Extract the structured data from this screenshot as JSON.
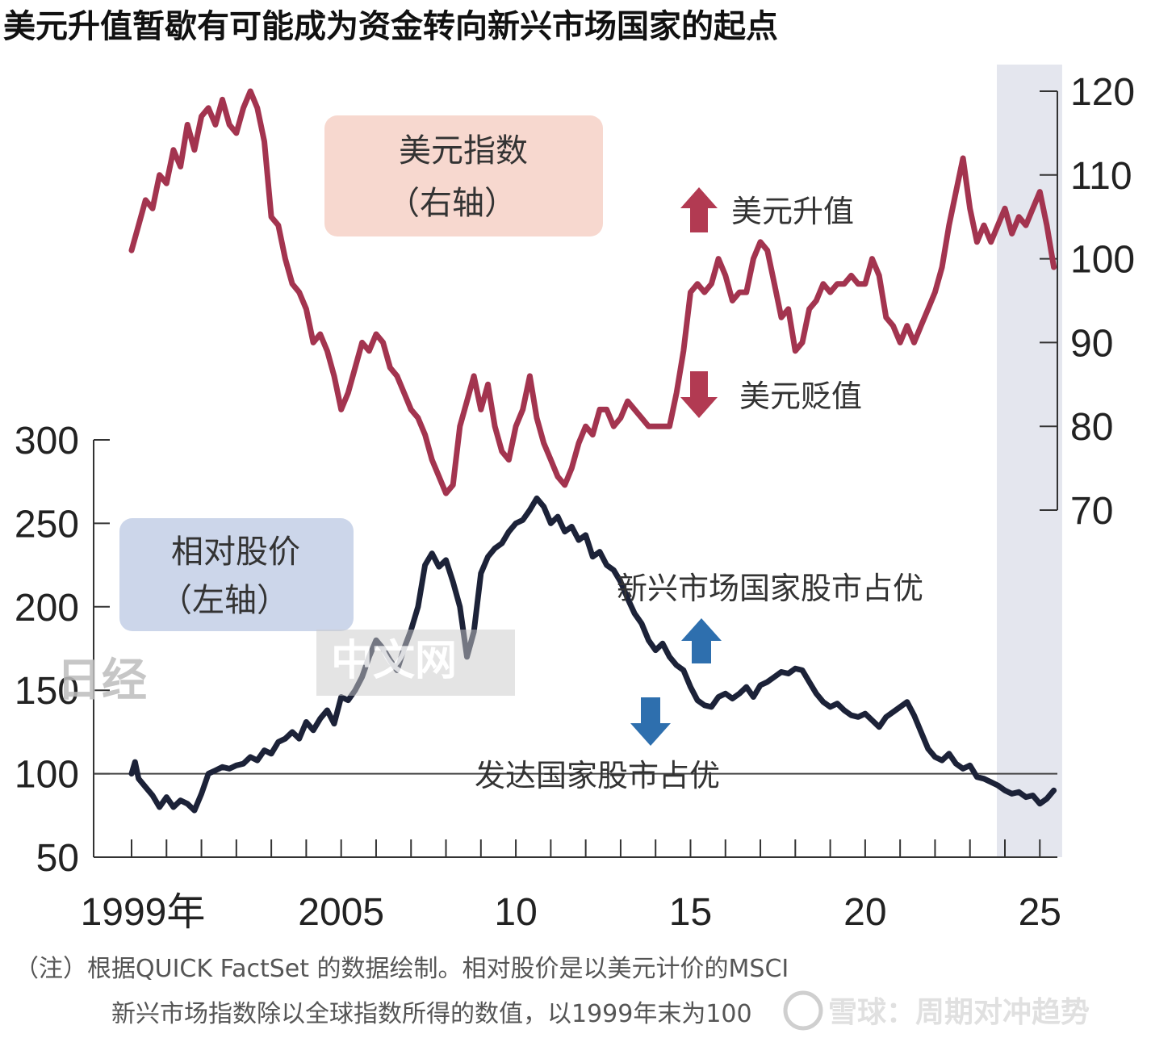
{
  "title": "美元升值暂歇有可能成为资金转向新兴市场国家的起点",
  "chart_data": {
    "type": "line",
    "x_ticks": [
      {
        "year": 1999,
        "label": "1999年"
      },
      {
        "year": 2005,
        "label": "2005"
      },
      {
        "year": 2010,
        "label": "10"
      },
      {
        "year": 2015,
        "label": "15"
      },
      {
        "year": 2020,
        "label": "20"
      },
      {
        "year": 2025,
        "label": "25"
      }
    ],
    "xlim": [
      1999,
      2025.4
    ],
    "left_axis": {
      "ylim": [
        50,
        300
      ],
      "ticks": [
        "50",
        "100",
        "150",
        "200",
        "250",
        "300"
      ],
      "reference_line": 100
    },
    "right_axis": {
      "ylim": [
        70,
        120
      ],
      "ticks": [
        "70",
        "80",
        "90",
        "100",
        "110",
        "120"
      ]
    },
    "series": [
      {
        "name": "美元指数",
        "name_sub": "（右轴）",
        "axis": "right",
        "color": "#a3344f",
        "points": [
          [
            1999.0,
            101
          ],
          [
            1999.2,
            104
          ],
          [
            1999.4,
            107
          ],
          [
            1999.6,
            106
          ],
          [
            1999.8,
            110
          ],
          [
            2000.0,
            109
          ],
          [
            2000.2,
            113
          ],
          [
            2000.4,
            111
          ],
          [
            2000.6,
            116
          ],
          [
            2000.8,
            113
          ],
          [
            2001.0,
            117
          ],
          [
            2001.2,
            118
          ],
          [
            2001.4,
            116
          ],
          [
            2001.6,
            119
          ],
          [
            2001.8,
            116
          ],
          [
            2002.0,
            115
          ],
          [
            2002.2,
            118
          ],
          [
            2002.4,
            120
          ],
          [
            2002.6,
            118
          ],
          [
            2002.8,
            114
          ],
          [
            2003.0,
            105
          ],
          [
            2003.2,
            104
          ],
          [
            2003.4,
            100
          ],
          [
            2003.6,
            97
          ],
          [
            2003.8,
            96
          ],
          [
            2004.0,
            94
          ],
          [
            2004.2,
            90
          ],
          [
            2004.4,
            91
          ],
          [
            2004.6,
            89
          ],
          [
            2004.8,
            86
          ],
          [
            2005.0,
            82
          ],
          [
            2005.2,
            84
          ],
          [
            2005.4,
            87
          ],
          [
            2005.6,
            90
          ],
          [
            2005.8,
            89
          ],
          [
            2006.0,
            91
          ],
          [
            2006.2,
            90
          ],
          [
            2006.4,
            87
          ],
          [
            2006.6,
            86
          ],
          [
            2006.8,
            84
          ],
          [
            2007.0,
            82
          ],
          [
            2007.2,
            81
          ],
          [
            2007.4,
            79
          ],
          [
            2007.6,
            76
          ],
          [
            2007.8,
            74
          ],
          [
            2008.0,
            72
          ],
          [
            2008.2,
            73
          ],
          [
            2008.4,
            80
          ],
          [
            2008.6,
            83
          ],
          [
            2008.8,
            86
          ],
          [
            2009.0,
            82
          ],
          [
            2009.2,
            85
          ],
          [
            2009.4,
            80
          ],
          [
            2009.6,
            77
          ],
          [
            2009.8,
            76
          ],
          [
            2010.0,
            80
          ],
          [
            2010.2,
            82
          ],
          [
            2010.4,
            86
          ],
          [
            2010.6,
            81
          ],
          [
            2010.8,
            78
          ],
          [
            2011.0,
            76
          ],
          [
            2011.2,
            74
          ],
          [
            2011.4,
            73
          ],
          [
            2011.6,
            75
          ],
          [
            2011.8,
            78
          ],
          [
            2012.0,
            80
          ],
          [
            2012.2,
            79
          ],
          [
            2012.4,
            82
          ],
          [
            2012.6,
            82
          ],
          [
            2012.8,
            80
          ],
          [
            2013.0,
            81
          ],
          [
            2013.2,
            83
          ],
          [
            2013.4,
            82
          ],
          [
            2013.6,
            81
          ],
          [
            2013.8,
            80
          ],
          [
            2014.0,
            80
          ],
          [
            2014.2,
            80
          ],
          [
            2014.4,
            80
          ],
          [
            2014.6,
            84
          ],
          [
            2014.8,
            89
          ],
          [
            2015.0,
            96
          ],
          [
            2015.2,
            97
          ],
          [
            2015.4,
            96
          ],
          [
            2015.6,
            97
          ],
          [
            2015.8,
            100
          ],
          [
            2016.0,
            98
          ],
          [
            2016.2,
            95
          ],
          [
            2016.4,
            96
          ],
          [
            2016.6,
            96
          ],
          [
            2016.8,
            100
          ],
          [
            2017.0,
            102
          ],
          [
            2017.2,
            101
          ],
          [
            2017.4,
            97
          ],
          [
            2017.6,
            93
          ],
          [
            2017.8,
            94
          ],
          [
            2018.0,
            89
          ],
          [
            2018.2,
            90
          ],
          [
            2018.4,
            94
          ],
          [
            2018.6,
            95
          ],
          [
            2018.8,
            97
          ],
          [
            2019.0,
            96
          ],
          [
            2019.2,
            97
          ],
          [
            2019.4,
            97
          ],
          [
            2019.6,
            98
          ],
          [
            2019.8,
            97
          ],
          [
            2020.0,
            97
          ],
          [
            2020.2,
            100
          ],
          [
            2020.4,
            98
          ],
          [
            2020.6,
            93
          ],
          [
            2020.8,
            92
          ],
          [
            2021.0,
            90
          ],
          [
            2021.2,
            92
          ],
          [
            2021.4,
            90
          ],
          [
            2021.6,
            92
          ],
          [
            2021.8,
            94
          ],
          [
            2022.0,
            96
          ],
          [
            2022.2,
            99
          ],
          [
            2022.4,
            104
          ],
          [
            2022.6,
            108
          ],
          [
            2022.8,
            112
          ],
          [
            2023.0,
            106
          ],
          [
            2023.2,
            102
          ],
          [
            2023.4,
            104
          ],
          [
            2023.6,
            102
          ],
          [
            2023.8,
            104
          ],
          [
            2024.0,
            106
          ],
          [
            2024.2,
            103
          ],
          [
            2024.4,
            105
          ],
          [
            2024.6,
            104
          ],
          [
            2024.8,
            106
          ],
          [
            2025.0,
            108
          ],
          [
            2025.2,
            104
          ],
          [
            2025.4,
            99
          ]
        ]
      },
      {
        "name": "相对股价",
        "name_sub": "（左轴）",
        "axis": "left",
        "color": "#1c2238",
        "points": [
          [
            1999.0,
            100
          ],
          [
            1999.1,
            107
          ],
          [
            1999.2,
            97
          ],
          [
            1999.4,
            92
          ],
          [
            1999.6,
            87
          ],
          [
            1999.8,
            80
          ],
          [
            2000.0,
            86
          ],
          [
            2000.2,
            80
          ],
          [
            2000.4,
            84
          ],
          [
            2000.6,
            82
          ],
          [
            2000.8,
            78
          ],
          [
            2001.0,
            88
          ],
          [
            2001.2,
            100
          ],
          [
            2001.4,
            102
          ],
          [
            2001.6,
            104
          ],
          [
            2001.8,
            103
          ],
          [
            2002.0,
            105
          ],
          [
            2002.2,
            106
          ],
          [
            2002.4,
            110
          ],
          [
            2002.6,
            108
          ],
          [
            2002.8,
            114
          ],
          [
            2003.0,
            112
          ],
          [
            2003.2,
            119
          ],
          [
            2003.4,
            121
          ],
          [
            2003.6,
            125
          ],
          [
            2003.8,
            121
          ],
          [
            2004.0,
            131
          ],
          [
            2004.2,
            126
          ],
          [
            2004.4,
            133
          ],
          [
            2004.6,
            138
          ],
          [
            2004.8,
            130
          ],
          [
            2005.0,
            146
          ],
          [
            2005.2,
            144
          ],
          [
            2005.4,
            150
          ],
          [
            2005.6,
            158
          ],
          [
            2005.8,
            170
          ],
          [
            2006.0,
            180
          ],
          [
            2006.2,
            175
          ],
          [
            2006.4,
            168
          ],
          [
            2006.6,
            162
          ],
          [
            2006.8,
            175
          ],
          [
            2007.0,
            186
          ],
          [
            2007.2,
            200
          ],
          [
            2007.4,
            225
          ],
          [
            2007.6,
            232
          ],
          [
            2007.8,
            224
          ],
          [
            2008.0,
            228
          ],
          [
            2008.2,
            215
          ],
          [
            2008.4,
            200
          ],
          [
            2008.6,
            170
          ],
          [
            2008.8,
            185
          ],
          [
            2009.0,
            220
          ],
          [
            2009.2,
            230
          ],
          [
            2009.4,
            235
          ],
          [
            2009.6,
            238
          ],
          [
            2009.8,
            245
          ],
          [
            2010.0,
            250
          ],
          [
            2010.2,
            252
          ],
          [
            2010.4,
            258
          ],
          [
            2010.6,
            265
          ],
          [
            2010.8,
            260
          ],
          [
            2011.0,
            250
          ],
          [
            2011.2,
            254
          ],
          [
            2011.4,
            245
          ],
          [
            2011.6,
            248
          ],
          [
            2011.8,
            240
          ],
          [
            2012.0,
            243
          ],
          [
            2012.2,
            230
          ],
          [
            2012.4,
            233
          ],
          [
            2012.6,
            225
          ],
          [
            2012.8,
            222
          ],
          [
            2013.0,
            215
          ],
          [
            2013.2,
            205
          ],
          [
            2013.4,
            196
          ],
          [
            2013.6,
            190
          ],
          [
            2013.8,
            180
          ],
          [
            2014.0,
            174
          ],
          [
            2014.2,
            178
          ],
          [
            2014.4,
            170
          ],
          [
            2014.6,
            165
          ],
          [
            2014.8,
            162
          ],
          [
            2015.0,
            152
          ],
          [
            2015.2,
            144
          ],
          [
            2015.4,
            141
          ],
          [
            2015.6,
            140
          ],
          [
            2015.8,
            146
          ],
          [
            2016.0,
            148
          ],
          [
            2016.2,
            145
          ],
          [
            2016.4,
            148
          ],
          [
            2016.6,
            152
          ],
          [
            2016.8,
            146
          ],
          [
            2017.0,
            153
          ],
          [
            2017.2,
            155
          ],
          [
            2017.4,
            158
          ],
          [
            2017.6,
            161
          ],
          [
            2017.8,
            160
          ],
          [
            2018.0,
            163
          ],
          [
            2018.2,
            162
          ],
          [
            2018.4,
            155
          ],
          [
            2018.6,
            148
          ],
          [
            2018.8,
            143
          ],
          [
            2019.0,
            140
          ],
          [
            2019.2,
            142
          ],
          [
            2019.4,
            138
          ],
          [
            2019.6,
            135
          ],
          [
            2019.8,
            134
          ],
          [
            2020.0,
            136
          ],
          [
            2020.2,
            132
          ],
          [
            2020.4,
            128
          ],
          [
            2020.6,
            134
          ],
          [
            2020.8,
            137
          ],
          [
            2021.0,
            140
          ],
          [
            2021.2,
            143
          ],
          [
            2021.4,
            135
          ],
          [
            2021.6,
            125
          ],
          [
            2021.8,
            115
          ],
          [
            2022.0,
            110
          ],
          [
            2022.2,
            108
          ],
          [
            2022.4,
            112
          ],
          [
            2022.6,
            106
          ],
          [
            2022.8,
            103
          ],
          [
            2023.0,
            105
          ],
          [
            2023.2,
            98
          ],
          [
            2023.4,
            97
          ],
          [
            2023.6,
            95
          ],
          [
            2023.8,
            93
          ],
          [
            2024.0,
            90
          ],
          [
            2024.2,
            88
          ],
          [
            2024.4,
            89
          ],
          [
            2024.6,
            86
          ],
          [
            2024.8,
            87
          ],
          [
            2025.0,
            82
          ],
          [
            2025.2,
            85
          ],
          [
            2025.4,
            90
          ]
        ]
      }
    ],
    "annotations": {
      "usd_up": "美元升值",
      "usd_down": "美元贬值",
      "em_outperform": "新兴市场国家股市占优",
      "dm_outperform": "发达国家股市占优"
    },
    "highlight_band": [
      2024.0,
      2025.5
    ],
    "note_lines": [
      "（注）根据QUICK FactSet 的数据绘制。相对股价是以美元计价的MSCI",
      "新兴市场指数除以全球指数所得的数值，以1999年末为100"
    ],
    "colors": {
      "usd_box": "#f7d8cf",
      "stock_box": "#ccd6ea",
      "arrow_red": "#b23a52",
      "arrow_blue": "#2e6fae",
      "band": "#e4e6ee"
    }
  },
  "watermark": {
    "logo": "日经",
    "text": "中文网",
    "site": "雪球：周期对冲趋势"
  }
}
